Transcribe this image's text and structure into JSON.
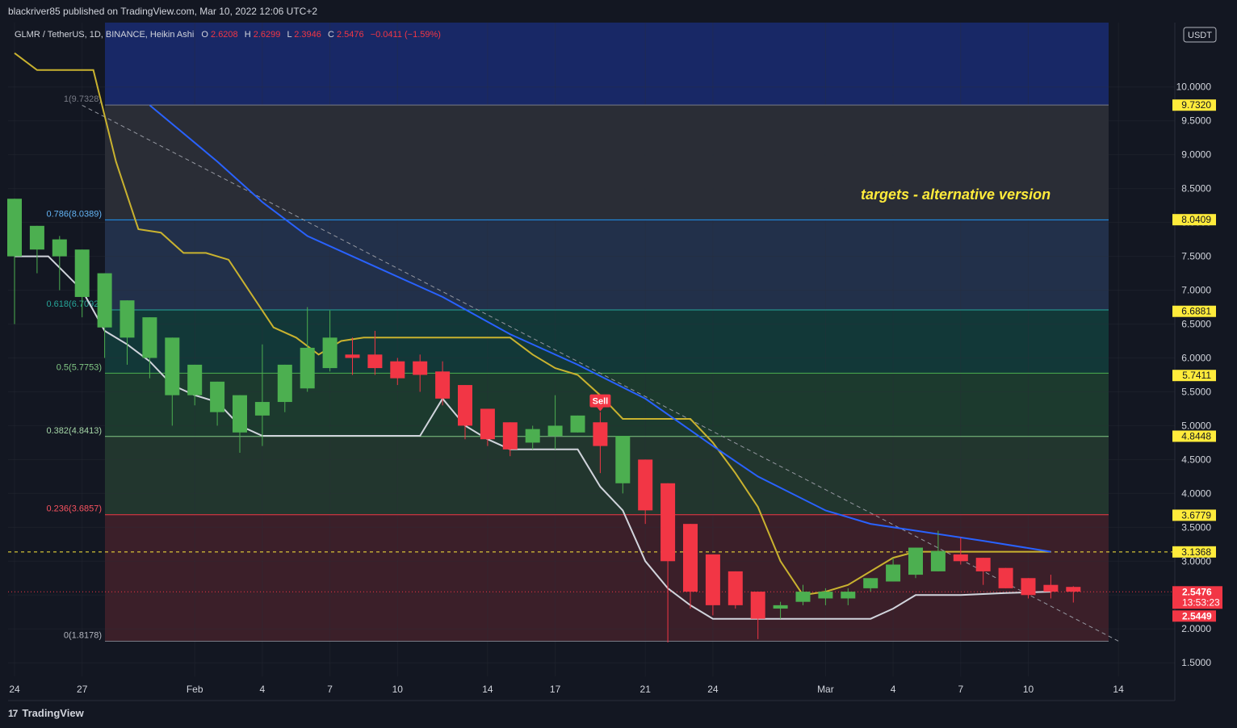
{
  "header": {
    "publisher": "blackriver85 published on TradingView.com, Mar 10, 2022 12:06 UTC+2"
  },
  "footer": {
    "logo_mark": "17",
    "logo_text": "TradingView"
  },
  "colors": {
    "background": "#131722",
    "bull": "#4caf50",
    "bear": "#f23645",
    "ma_blue": "#2962ff",
    "ma_yellow": "#c9b22f",
    "support_white": "#d1d4dc",
    "price_label_yellow": "#ffeb3b"
  },
  "chart_data": {
    "type": "candlestick",
    "legend": {
      "symbol": "GLMR / TetherUS, 1D, BINANCE, Heikin Ashi",
      "o_label": "O",
      "o": "2.6208",
      "h_label": "H",
      "h": "2.6299",
      "l_label": "L",
      "l": "2.3946",
      "c_label": "C",
      "c": "2.5476",
      "change": "−0.0411 (−1.59%)"
    },
    "currency_button": "USDT",
    "annotation": "targets - alternative version",
    "signal_label": "Sell",
    "ylim": [
      1.3,
      10.95
    ],
    "y_ticks": [
      "1.5000",
      "2.0000",
      "2.5000",
      "3.0000",
      "3.5000",
      "4.0000",
      "4.5000",
      "5.0000",
      "5.5000",
      "6.0000",
      "6.5000",
      "7.0000",
      "7.5000",
      "8.0000",
      "8.5000",
      "9.0000",
      "9.5000",
      "10.0000"
    ],
    "x_ticks": [
      {
        "label": "24",
        "i": 0
      },
      {
        "label": "27",
        "i": 3
      },
      {
        "label": "Feb",
        "i": 8
      },
      {
        "label": "4",
        "i": 11
      },
      {
        "label": "7",
        "i": 14
      },
      {
        "label": "10",
        "i": 17
      },
      {
        "label": "14",
        "i": 21
      },
      {
        "label": "17",
        "i": 24
      },
      {
        "label": "21",
        "i": 28
      },
      {
        "label": "24",
        "i": 31
      },
      {
        "label": "Mar",
        "i": 36
      },
      {
        "label": "4",
        "i": 39
      },
      {
        "label": "7",
        "i": 42
      },
      {
        "label": "10",
        "i": 45
      },
      {
        "label": "14",
        "i": 49
      }
    ],
    "fib_levels": [
      {
        "label": "1(9.7328)",
        "value": 9.7328
      },
      {
        "label": "0.786(8.0389)",
        "value": 8.0389
      },
      {
        "label": "0.618(6.7092)",
        "value": 6.7092
      },
      {
        "label": "0.5(5.7753)",
        "value": 5.7753
      },
      {
        "label": "0.382(4.8413)",
        "value": 4.8413
      },
      {
        "label": "0.236(3.6857)",
        "value": 3.6857
      },
      {
        "label": "0(1.8178)",
        "value": 1.8178
      }
    ],
    "price_labels": [
      {
        "label": "9.7320",
        "value": 9.732
      },
      {
        "label": "8.0409",
        "value": 8.0409
      },
      {
        "label": "6.6881",
        "value": 6.6881
      },
      {
        "label": "5.7411",
        "value": 5.7411
      },
      {
        "label": "4.8448",
        "value": 4.8448
      },
      {
        "label": "3.6779",
        "value": 3.6779
      },
      {
        "label": "3.1368",
        "value": 3.1368
      }
    ],
    "last_price": {
      "label": "2.5476",
      "value": 2.5476,
      "countdown": "13:53:23"
    },
    "second_price": {
      "label": "2.5449",
      "value": 2.5449
    },
    "candles": [
      {
        "o": 7.5,
        "h": 8.35,
        "l": 6.5,
        "c": 8.35
      },
      {
        "o": 7.6,
        "h": 7.95,
        "l": 7.25,
        "c": 7.95
      },
      {
        "o": 7.5,
        "h": 7.8,
        "l": 7.0,
        "c": 7.75
      },
      {
        "o": 6.9,
        "h": 7.6,
        "l": 6.6,
        "c": 7.6
      },
      {
        "o": 6.45,
        "h": 7.25,
        "l": 6.0,
        "c": 7.25
      },
      {
        "o": 6.3,
        "h": 6.85,
        "l": 5.9,
        "c": 6.85
      },
      {
        "o": 6.0,
        "h": 6.6,
        "l": 5.7,
        "c": 6.6
      },
      {
        "o": 5.45,
        "h": 6.3,
        "l": 5.0,
        "c": 6.3
      },
      {
        "o": 5.45,
        "h": 5.9,
        "l": 5.3,
        "c": 5.9
      },
      {
        "o": 5.2,
        "h": 5.65,
        "l": 5.0,
        "c": 5.65
      },
      {
        "o": 4.9,
        "h": 5.45,
        "l": 4.6,
        "c": 5.45
      },
      {
        "o": 5.15,
        "h": 6.2,
        "l": 4.7,
        "c": 5.35
      },
      {
        "o": 5.35,
        "h": 5.9,
        "l": 5.2,
        "c": 5.9
      },
      {
        "o": 5.55,
        "h": 6.75,
        "l": 5.5,
        "c": 6.15
      },
      {
        "o": 5.85,
        "h": 6.7,
        "l": 5.8,
        "c": 6.3
      },
      {
        "o": 6.05,
        "h": 6.3,
        "l": 5.75,
        "c": 6.0
      },
      {
        "o": 6.05,
        "h": 6.4,
        "l": 5.75,
        "c": 5.85
      },
      {
        "o": 5.95,
        "h": 6.0,
        "l": 5.6,
        "c": 5.7
      },
      {
        "o": 5.95,
        "h": 6.05,
        "l": 5.5,
        "c": 5.75
      },
      {
        "o": 5.8,
        "h": 5.95,
        "l": 5.3,
        "c": 5.4
      },
      {
        "o": 5.6,
        "h": 5.6,
        "l": 4.8,
        "c": 5.0
      },
      {
        "o": 5.25,
        "h": 5.25,
        "l": 4.7,
        "c": 4.8
      },
      {
        "o": 5.05,
        "h": 5.05,
        "l": 4.55,
        "c": 4.65
      },
      {
        "o": 4.75,
        "h": 5.0,
        "l": 4.65,
        "c": 4.95
      },
      {
        "o": 4.85,
        "h": 5.45,
        "l": 4.65,
        "c": 5.0
      },
      {
        "o": 4.9,
        "h": 5.15,
        "l": 4.9,
        "c": 5.15
      },
      {
        "o": 5.05,
        "h": 5.2,
        "l": 4.3,
        "c": 4.7
      },
      {
        "o": 4.15,
        "h": 4.85,
        "l": 4.0,
        "c": 4.85
      },
      {
        "o": 4.5,
        "h": 4.5,
        "l": 3.55,
        "c": 3.75
      },
      {
        "o": 4.15,
        "h": 4.15,
        "l": 1.8,
        "c": 3.0
      },
      {
        "o": 3.55,
        "h": 3.55,
        "l": 2.3,
        "c": 2.55
      },
      {
        "o": 3.1,
        "h": 3.1,
        "l": 2.2,
        "c": 2.35
      },
      {
        "o": 2.85,
        "h": 2.85,
        "l": 2.3,
        "c": 2.35
      },
      {
        "o": 2.55,
        "h": 2.55,
        "l": 1.85,
        "c": 2.15
      },
      {
        "o": 2.3,
        "h": 2.4,
        "l": 2.15,
        "c": 2.35
      },
      {
        "o": 2.4,
        "h": 2.65,
        "l": 2.35,
        "c": 2.55
      },
      {
        "o": 2.45,
        "h": 2.6,
        "l": 2.35,
        "c": 2.55
      },
      {
        "o": 2.45,
        "h": 2.6,
        "l": 2.35,
        "c": 2.55
      },
      {
        "o": 2.6,
        "h": 2.75,
        "l": 2.55,
        "c": 2.75
      },
      {
        "o": 2.7,
        "h": 3.05,
        "l": 2.7,
        "c": 2.95
      },
      {
        "o": 2.8,
        "h": 3.2,
        "l": 2.75,
        "c": 3.2
      },
      {
        "o": 2.85,
        "h": 3.45,
        "l": 2.85,
        "c": 3.15
      },
      {
        "o": 3.1,
        "h": 3.35,
        "l": 2.95,
        "c": 3.0
      },
      {
        "o": 3.05,
        "h": 3.05,
        "l": 2.65,
        "c": 2.85
      },
      {
        "o": 2.9,
        "h": 2.9,
        "l": 2.6,
        "c": 2.6
      },
      {
        "o": 2.75,
        "h": 2.75,
        "l": 2.45,
        "c": 2.5
      },
      {
        "o": 2.65,
        "h": 2.8,
        "l": 2.45,
        "c": 2.55
      },
      {
        "o": 2.62,
        "h": 2.63,
        "l": 2.39,
        "c": 2.55
      }
    ],
    "ma_blue": [
      {
        "i": 6,
        "v": 9.73
      },
      {
        "i": 9,
        "v": 8.9
      },
      {
        "i": 11,
        "v": 8.3
      },
      {
        "i": 13,
        "v": 7.8
      },
      {
        "i": 16,
        "v": 7.35
      },
      {
        "i": 19,
        "v": 6.9
      },
      {
        "i": 22,
        "v": 6.35
      },
      {
        "i": 25,
        "v": 5.9
      },
      {
        "i": 28,
        "v": 5.4
      },
      {
        "i": 31,
        "v": 4.7
      },
      {
        "i": 33,
        "v": 4.25
      },
      {
        "i": 36,
        "v": 3.75
      },
      {
        "i": 38,
        "v": 3.55
      },
      {
        "i": 40,
        "v": 3.45
      },
      {
        "i": 43,
        "v": 3.3
      },
      {
        "i": 46,
        "v": 3.14
      }
    ],
    "ma_yellow": [
      {
        "i": 0,
        "v": 10.5
      },
      {
        "i": 1,
        "v": 10.25
      },
      {
        "i": 3.5,
        "v": 10.25
      },
      {
        "i": 4.5,
        "v": 8.9
      },
      {
        "i": 5.5,
        "v": 7.9
      },
      {
        "i": 6.5,
        "v": 7.85
      },
      {
        "i": 7.5,
        "v": 7.55
      },
      {
        "i": 8.5,
        "v": 7.55
      },
      {
        "i": 9.5,
        "v": 7.45
      },
      {
        "i": 10.5,
        "v": 6.95
      },
      {
        "i": 11.5,
        "v": 6.45
      },
      {
        "i": 12.5,
        "v": 6.3
      },
      {
        "i": 13.5,
        "v": 6.05
      },
      {
        "i": 14.5,
        "v": 6.25
      },
      {
        "i": 15.5,
        "v": 6.3
      },
      {
        "i": 22,
        "v": 6.3
      },
      {
        "i": 23,
        "v": 6.05
      },
      {
        "i": 24,
        "v": 5.85
      },
      {
        "i": 25,
        "v": 5.75
      },
      {
        "i": 26,
        "v": 5.45
      },
      {
        "i": 27,
        "v": 5.1
      },
      {
        "i": 30,
        "v": 5.1
      },
      {
        "i": 31,
        "v": 4.75
      },
      {
        "i": 32,
        "v": 4.3
      },
      {
        "i": 33,
        "v": 3.8
      },
      {
        "i": 34,
        "v": 3.0
      },
      {
        "i": 35,
        "v": 2.5
      },
      {
        "i": 36,
        "v": 2.55
      },
      {
        "i": 37,
        "v": 2.65
      },
      {
        "i": 38,
        "v": 2.85
      },
      {
        "i": 39,
        "v": 3.05
      },
      {
        "i": 40,
        "v": 3.14
      },
      {
        "i": 46,
        "v": 3.14
      }
    ],
    "support_white": [
      {
        "i": 0,
        "v": 7.5
      },
      {
        "i": 1.5,
        "v": 7.5
      },
      {
        "i": 3,
        "v": 7.0
      },
      {
        "i": 4,
        "v": 6.4
      },
      {
        "i": 5,
        "v": 6.2
      },
      {
        "i": 6,
        "v": 5.95
      },
      {
        "i": 7,
        "v": 5.6
      },
      {
        "i": 8,
        "v": 5.45
      },
      {
        "i": 9,
        "v": 5.35
      },
      {
        "i": 10,
        "v": 5.0
      },
      {
        "i": 11,
        "v": 4.85
      },
      {
        "i": 18,
        "v": 4.85
      },
      {
        "i": 19,
        "v": 5.4
      },
      {
        "i": 20,
        "v": 5.0
      },
      {
        "i": 21,
        "v": 4.8
      },
      {
        "i": 22,
        "v": 4.65
      },
      {
        "i": 25,
        "v": 4.65
      },
      {
        "i": 26,
        "v": 4.1
      },
      {
        "i": 27,
        "v": 3.75
      },
      {
        "i": 28,
        "v": 3.0
      },
      {
        "i": 29,
        "v": 2.6
      },
      {
        "i": 30,
        "v": 2.35
      },
      {
        "i": 31,
        "v": 2.15
      },
      {
        "i": 38,
        "v": 2.15
      },
      {
        "i": 39,
        "v": 2.3
      },
      {
        "i": 40,
        "v": 2.5
      },
      {
        "i": 42,
        "v": 2.5
      },
      {
        "i": 44,
        "v": 2.53
      },
      {
        "i": 46,
        "v": 2.55
      }
    ],
    "trendline": {
      "start": {
        "i": 3,
        "v": 9.73
      },
      "end": {
        "i": 49,
        "v": 1.82
      }
    },
    "dashed_yellow_level": 3.1368,
    "sell_index": 26
  }
}
